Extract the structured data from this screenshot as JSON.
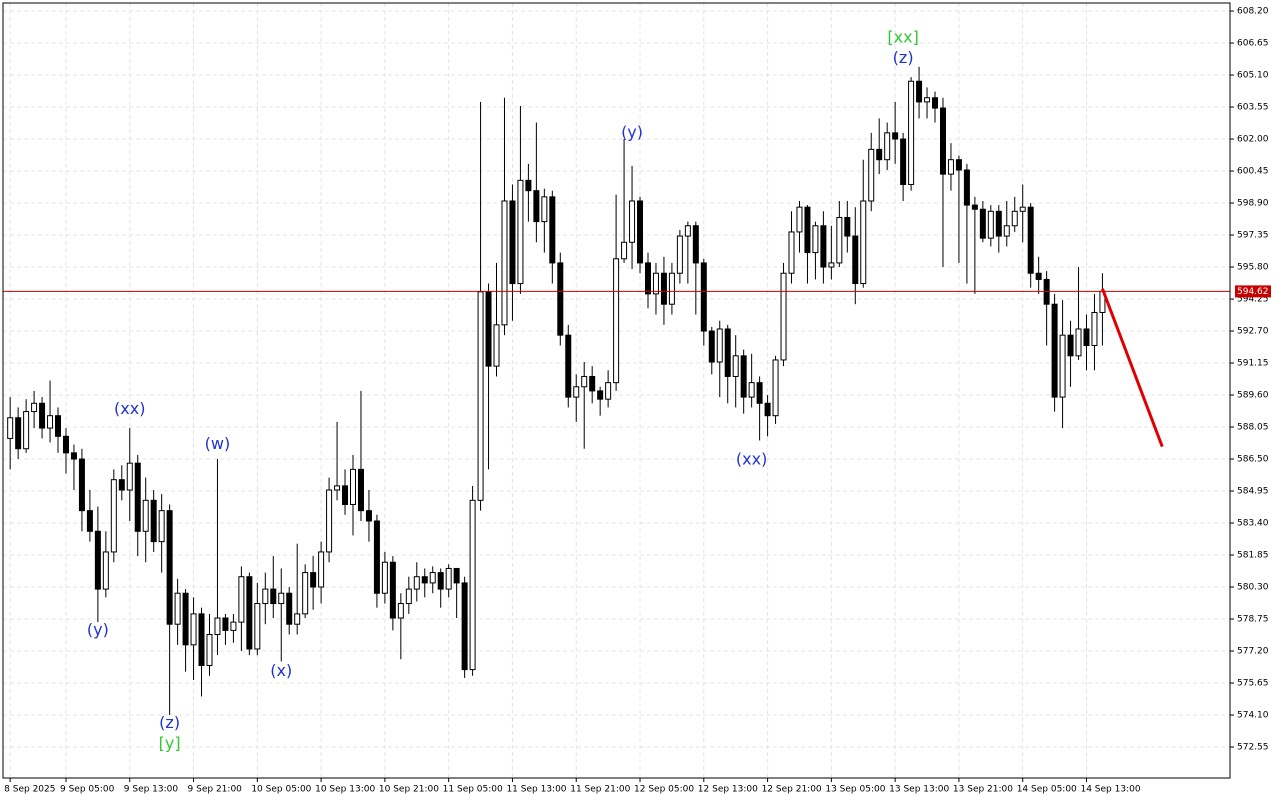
{
  "chart_data": {
    "type": "candlestick",
    "open": [
      587.5,
      588.5,
      587.0,
      588.8,
      589.2,
      588.0,
      588.6,
      587.6,
      586.8,
      586.5,
      584.0,
      583.0,
      580.2,
      582.0,
      585.5,
      585.0,
      586.3,
      583.0,
      584.5,
      582.5,
      584.0,
      578.5,
      580.0,
      577.5,
      579.0,
      576.5,
      578.0,
      578.8,
      578.2,
      578.6,
      580.8,
      577.3,
      579.5,
      580.2,
      579.5,
      580.0,
      578.5,
      579.0,
      581.0,
      580.3,
      582.0,
      585.0,
      585.2,
      584.3,
      586.0,
      584.0,
      583.5,
      580.0,
      581.5,
      578.8,
      579.5,
      580.2,
      580.8,
      580.5,
      581.0,
      580.2,
      581.2,
      580.5,
      576.3,
      584.5,
      594.6,
      591.0,
      593.0,
      599.0,
      595.0,
      600.0,
      599.5,
      598.0,
      599.2,
      596.0,
      592.5,
      589.5,
      590.0,
      590.5,
      589.8,
      589.4,
      590.2,
      596.2,
      597.0,
      599.0,
      596.0,
      594.5,
      595.5,
      594.0,
      595.5,
      597.3,
      597.8,
      596.0,
      592.7,
      591.2,
      592.8,
      590.5,
      591.5,
      589.5,
      590.2,
      589.2,
      588.6,
      591.3,
      595.5,
      597.5,
      598.7,
      596.5,
      597.8,
      595.8,
      596.0,
      598.2,
      597.3,
      595.0,
      599.0,
      601.5,
      601.0,
      602.3,
      602.0,
      599.8,
      604.8,
      603.8,
      604.0,
      603.5,
      600.3,
      601.0,
      600.5,
      598.8,
      598.6,
      597.2,
      598.5,
      597.3,
      597.8,
      598.5,
      598.7,
      595.5,
      595.2,
      594.0,
      589.5,
      592.5,
      591.5,
      592.8,
      592.0,
      593.6
    ],
    "high": [
      589.5,
      589.0,
      589.4,
      589.8,
      589.5,
      590.3,
      589.0,
      588.0,
      587.2,
      587.0,
      585.0,
      584.2,
      583.0,
      586.0,
      586.2,
      588.0,
      586.7,
      585.6,
      585.0,
      584.8,
      584.3,
      580.7,
      580.2,
      579.8,
      579.3,
      579.0,
      586.5,
      579.0,
      579.0,
      581.3,
      581.0,
      580.5,
      581.0,
      581.8,
      581.2,
      580.3,
      582.4,
      581.4,
      581.8,
      582.5,
      585.6,
      588.3,
      586.0,
      586.7,
      589.8,
      585.0,
      583.8,
      582.0,
      581.8,
      580.0,
      580.8,
      581.5,
      581.2,
      581.3,
      581.2,
      581.4,
      581.2,
      580.8,
      585.2,
      603.8,
      595.0,
      596.0,
      604.0,
      599.8,
      603.6,
      600.8,
      602.8,
      599.6,
      599.5,
      596.5,
      593.0,
      590.6,
      591.2,
      591.0,
      590.0,
      590.8,
      599.3,
      602.0,
      600.7,
      599.2,
      596.5,
      596.0,
      596.3,
      596.0,
      597.6,
      598.0,
      598.0,
      596.2,
      592.9,
      593.2,
      593.0,
      592.5,
      591.8,
      591.6,
      590.5,
      589.6,
      591.5,
      596.0,
      598.5,
      599.0,
      598.8,
      598.0,
      598.5,
      597.8,
      599.0,
      599.0,
      598.7,
      601.0,
      602.3,
      603.0,
      602.8,
      603.8,
      602.3,
      605.0,
      605.5,
      604.5,
      604.3,
      604.0,
      601.8,
      601.2,
      600.8,
      599.2,
      599.0,
      598.8,
      598.8,
      599.0,
      599.2,
      599.8,
      598.9,
      596.3,
      595.6,
      594.5,
      594.2,
      593.2,
      595.8,
      593.5,
      594.5,
      595.5
    ],
    "low": [
      586.0,
      586.5,
      586.8,
      588.0,
      587.5,
      587.3,
      586.8,
      585.8,
      585.0,
      583.0,
      582.5,
      578.6,
      579.8,
      581.5,
      584.5,
      583.5,
      581.8,
      581.5,
      582.0,
      581.0,
      574.1,
      577.5,
      576.2,
      575.8,
      575.0,
      576.0,
      577.0,
      577.5,
      577.6,
      577.2,
      577.0,
      577.0,
      578.5,
      578.8,
      576.7,
      578.0,
      578.0,
      578.8,
      579.2,
      579.5,
      581.5,
      584.5,
      583.8,
      582.8,
      583.5,
      582.5,
      579.3,
      579.5,
      578.2,
      576.8,
      579.0,
      579.6,
      579.8,
      580.0,
      579.3,
      579.8,
      578.8,
      575.9,
      576.0,
      584.0,
      586.0,
      590.5,
      592.5,
      593.2,
      594.5,
      598.0,
      597.0,
      596.5,
      595.0,
      592.0,
      589.0,
      588.3,
      587.0,
      589.2,
      588.6,
      589.0,
      589.8,
      596.0,
      595.7,
      595.5,
      593.8,
      593.5,
      593.0,
      593.5,
      595.0,
      595.0,
      593.5,
      592.0,
      590.6,
      589.5,
      589.2,
      589.0,
      588.7,
      589.0,
      587.4,
      587.6,
      588.2,
      591.0,
      595.0,
      596.5,
      595.0,
      595.2,
      595.0,
      595.2,
      595.8,
      596.5,
      594.0,
      594.8,
      598.5,
      600.3,
      600.5,
      600.8,
      599.0,
      599.5,
      603.0,
      603.0,
      602.8,
      595.8,
      599.5,
      596.0,
      595.0,
      594.5,
      597.0,
      596.8,
      596.5,
      596.8,
      597.5,
      597.0,
      594.8,
      594.5,
      592.0,
      588.8,
      588.0,
      590.0,
      591.3,
      590.8,
      590.8,
      592.0
    ],
    "close": [
      588.5,
      587.0,
      588.8,
      589.2,
      588.0,
      588.6,
      587.6,
      586.8,
      586.5,
      584.0,
      583.0,
      580.2,
      582.0,
      585.5,
      585.0,
      586.3,
      583.0,
      584.5,
      582.5,
      584.0,
      578.5,
      580.0,
      577.5,
      579.0,
      576.5,
      578.0,
      578.8,
      578.2,
      578.6,
      580.8,
      577.3,
      579.5,
      580.2,
      579.5,
      580.0,
      578.5,
      579.0,
      581.0,
      580.3,
      582.0,
      585.0,
      585.2,
      584.3,
      586.0,
      584.0,
      583.5,
      580.0,
      581.5,
      578.8,
      579.5,
      580.2,
      580.8,
      580.5,
      581.0,
      580.2,
      581.2,
      580.5,
      576.3,
      584.5,
      594.6,
      591.0,
      593.0,
      599.0,
      595.0,
      600.0,
      599.5,
      598.0,
      599.2,
      596.0,
      592.5,
      589.5,
      590.0,
      590.5,
      589.8,
      589.4,
      590.2,
      596.2,
      597.0,
      599.0,
      596.0,
      594.5,
      595.5,
      594.0,
      595.5,
      597.3,
      597.8,
      596.0,
      592.7,
      591.2,
      592.8,
      590.5,
      591.5,
      589.5,
      590.2,
      589.2,
      588.6,
      591.3,
      595.5,
      597.5,
      598.7,
      596.5,
      597.8,
      595.8,
      596.0,
      598.2,
      597.3,
      595.0,
      599.0,
      601.5,
      601.0,
      602.3,
      602.0,
      599.8,
      604.8,
      603.8,
      604.0,
      603.5,
      600.3,
      601.0,
      600.5,
      598.8,
      598.6,
      597.2,
      598.5,
      597.3,
      597.8,
      598.5,
      598.7,
      595.5,
      595.2,
      594.0,
      589.5,
      592.5,
      591.5,
      592.8,
      592.0,
      593.6,
      594.62
    ],
    "current_price": {
      "value": 594.62,
      "label": "594.62",
      "color": "#c80000"
    },
    "forecast": {
      "x": [
        137,
        144.5
      ],
      "values": [
        594.75,
        587.1
      ],
      "color": "#e00000"
    },
    "annotations": [
      {
        "text": "(y)",
        "x": 11,
        "y": 578.2,
        "color": "#1e32d2"
      },
      {
        "text": "(xx)",
        "x": 15,
        "y": 588.9,
        "color": "#1e32d2"
      },
      {
        "text": "(z)",
        "x": 20,
        "y": 573.7,
        "color": "#1e32d2"
      },
      {
        "text": "[y]",
        "x": 20,
        "y": 572.7,
        "color": "#32c832"
      },
      {
        "text": "(w)",
        "x": 26,
        "y": 587.2,
        "color": "#1e32d2"
      },
      {
        "text": "(x)",
        "x": 34,
        "y": 576.2,
        "color": "#1e32d2"
      },
      {
        "text": "(y)",
        "x": 78,
        "y": 602.3,
        "color": "#1e32d2"
      },
      {
        "text": "(xx)",
        "x": 93,
        "y": 586.45,
        "color": "#1e32d2"
      },
      {
        "text": "(z)",
        "x": 112,
        "y": 605.9,
        "color": "#1e32d2"
      },
      {
        "text": "[xx]",
        "x": 112,
        "y": 606.9,
        "color": "#32c832"
      }
    ],
    "xlim": [
      -0.9,
      153
    ],
    "xticks": [
      {
        "value": 0,
        "label": "8 Sep 2025"
      },
      {
        "value": 7,
        "label": "9 Sep 05:00"
      },
      {
        "value": 15,
        "label": "9 Sep 13:00"
      },
      {
        "value": 23,
        "label": "9 Sep 21:00"
      },
      {
        "value": 31,
        "label": "10 Sep 05:00"
      },
      {
        "value": 39,
        "label": "10 Sep 13:00"
      },
      {
        "value": 47,
        "label": "10 Sep 21:00"
      },
      {
        "value": 55,
        "label": "11 Sep 05:00"
      },
      {
        "value": 63,
        "label": "11 Sep 13:00"
      },
      {
        "value": 71,
        "label": "11 Sep 21:00"
      },
      {
        "value": 79,
        "label": "12 Sep 05:00"
      },
      {
        "value": 87,
        "label": "12 Sep 13:00"
      },
      {
        "value": 95,
        "label": "12 Sep 21:00"
      },
      {
        "value": 103,
        "label": "13 Sep 05:00"
      },
      {
        "value": 111,
        "label": "13 Sep 13:00"
      },
      {
        "value": 119,
        "label": "13 Sep 21:00"
      },
      {
        "value": 127,
        "label": "14 Sep 05:00"
      },
      {
        "value": 135,
        "label": "14 Sep 13:00"
      }
    ],
    "ylim": [
      571.05,
      608.59
    ],
    "yticks": [
      {
        "value": 608.2,
        "label": "608.20"
      },
      606.65,
      {
        "value": 605.1,
        "label": "605.10"
      },
      603.55,
      {
        "value": 602,
        "label": "602.00"
      },
      600.45,
      {
        "value": 598.9,
        "label": "598.90"
      },
      597.35,
      {
        "value": 595.8,
        "label": "595.80"
      },
      594.25,
      {
        "value": 592.7,
        "label": "592.70"
      },
      591.15,
      {
        "value": 589.6,
        "label": "589.60"
      },
      588.05,
      {
        "value": 586.5,
        "label": "586.50"
      },
      584.95,
      {
        "value": 583.4,
        "label": "583.40"
      },
      581.85,
      {
        "value": 580.3,
        "label": "580.30"
      },
      578.75,
      {
        "value": 577.2,
        "label": "577.20"
      },
      575.65,
      {
        "value": 574.1,
        "label": "574.10"
      },
      572.55
    ],
    "grid": true
  }
}
